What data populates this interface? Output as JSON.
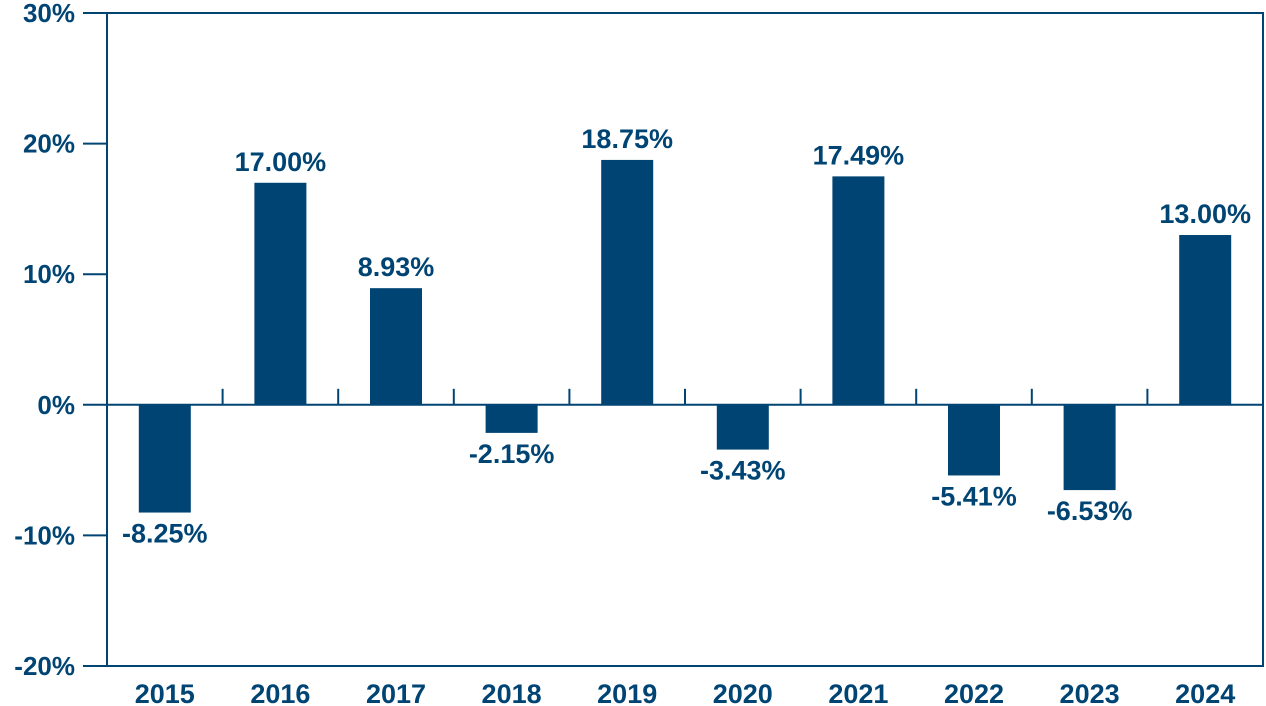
{
  "chart_data": {
    "type": "bar",
    "categories": [
      "2015",
      "2016",
      "2017",
      "2018",
      "2019",
      "2020",
      "2021",
      "2022",
      "2023",
      "2024"
    ],
    "values": [
      -8.25,
      17.0,
      8.93,
      -2.15,
      18.75,
      -3.43,
      17.49,
      -5.41,
      -6.53,
      13.0
    ],
    "data_labels": [
      "-8.25%",
      "17.00%",
      "8.93%",
      "-2.15%",
      "18.75%",
      "-3.43%",
      "17.49%",
      "-5.41%",
      "-6.53%",
      "13.00%"
    ],
    "y_ticks": [
      30,
      20,
      10,
      0,
      -10,
      -20
    ],
    "y_tick_labels": [
      "30%",
      "20%",
      "10%",
      "0%",
      "-10%",
      "-20%"
    ],
    "ylim": [
      -20,
      30
    ],
    "grid": false,
    "legend": "none",
    "colors": {
      "bar": "#004474",
      "axis": "#004474",
      "text": "#004474"
    }
  }
}
